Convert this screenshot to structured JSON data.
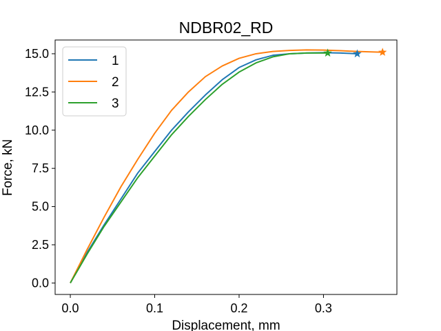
{
  "chart_data": {
    "type": "line",
    "title": "NDBR02_RD",
    "xlabel": "Displacement, mm",
    "ylabel": "Force, kN",
    "xlim": [
      -0.018,
      0.387
    ],
    "ylim": [
      -0.75,
      15.9
    ],
    "xticks": [
      0.0,
      0.1,
      0.2,
      0.3
    ],
    "xtick_labels": [
      "0.0",
      "0.1",
      "0.2",
      "0.3"
    ],
    "yticks": [
      0.0,
      2.5,
      5.0,
      7.5,
      10.0,
      12.5,
      15.0
    ],
    "ytick_labels": [
      "0.0",
      "2.5",
      "5.0",
      "7.5",
      "10.0",
      "12.5",
      "15.0"
    ],
    "grid": false,
    "legend_position": "top-left",
    "series": [
      {
        "name": "1",
        "color": "#1f77b4",
        "x": [
          0.0,
          0.01,
          0.02,
          0.04,
          0.06,
          0.08,
          0.1,
          0.12,
          0.14,
          0.16,
          0.18,
          0.2,
          0.22,
          0.24,
          0.26,
          0.28,
          0.3,
          0.32,
          0.34
        ],
        "y": [
          0.0,
          1.0,
          2.0,
          3.8,
          5.5,
          7.2,
          8.6,
          10.0,
          11.2,
          12.3,
          13.3,
          14.1,
          14.6,
          14.9,
          15.0,
          15.05,
          15.07,
          15.05,
          15.0
        ],
        "end_marker": "star"
      },
      {
        "name": "2",
        "color": "#ff7f0e",
        "x": [
          0.0,
          0.01,
          0.02,
          0.04,
          0.06,
          0.08,
          0.1,
          0.12,
          0.14,
          0.16,
          0.18,
          0.2,
          0.22,
          0.24,
          0.26,
          0.28,
          0.3,
          0.32,
          0.34,
          0.37
        ],
        "y": [
          0.0,
          1.1,
          2.2,
          4.3,
          6.3,
          8.1,
          9.8,
          11.3,
          12.5,
          13.5,
          14.2,
          14.7,
          15.0,
          15.15,
          15.22,
          15.25,
          15.24,
          15.2,
          15.15,
          15.1
        ],
        "end_marker": "star"
      },
      {
        "name": "3",
        "color": "#2ca02c",
        "x": [
          0.0,
          0.01,
          0.02,
          0.04,
          0.06,
          0.08,
          0.1,
          0.12,
          0.14,
          0.16,
          0.18,
          0.2,
          0.22,
          0.24,
          0.26,
          0.28,
          0.305
        ],
        "y": [
          0.0,
          0.95,
          1.9,
          3.7,
          5.3,
          6.9,
          8.3,
          9.7,
          10.9,
          12.0,
          13.0,
          13.8,
          14.4,
          14.8,
          15.0,
          15.05,
          15.05
        ],
        "end_marker": "star"
      }
    ]
  }
}
